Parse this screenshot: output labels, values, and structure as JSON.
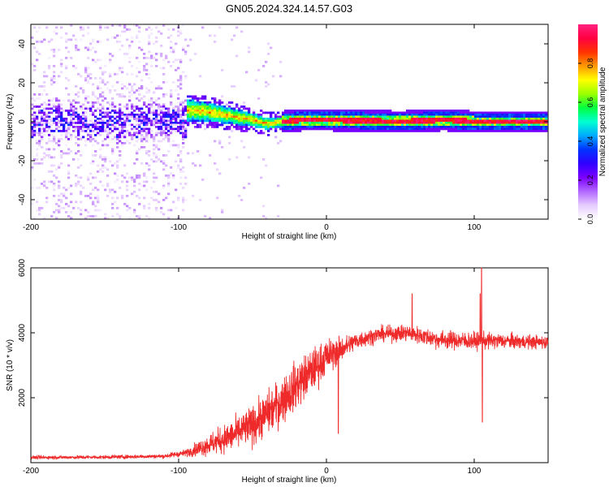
{
  "title": "GN05.2024.324.14.57.G03",
  "chart_data": [
    {
      "type": "heatmap",
      "title": "GN05.2024.324.14.57.G03",
      "xlabel": "Height of straight line (km)",
      "ylabel": "Frequency (Hz)",
      "xlim": [
        -200,
        150
      ],
      "ylim": [
        -50,
        50
      ],
      "x_ticks": [
        -200,
        -100,
        0,
        100
      ],
      "y_ticks": [
        -40,
        -20,
        0,
        20,
        40
      ],
      "colorbar": {
        "label": "Normalized spectral amplitude",
        "range": [
          0,
          1
        ],
        "ticks": [
          0.0,
          0.2,
          0.4,
          0.6,
          0.8
        ],
        "colors": [
          "#ffffff",
          "#e6ccff",
          "#b266ff",
          "#7a00ff",
          "#3000ff",
          "#0033ff",
          "#00aaff",
          "#00ffd0",
          "#00ff40",
          "#9aff00",
          "#ffff00",
          "#ff9900",
          "#ff3300",
          "#ff0040",
          "#ff2080"
        ]
      },
      "structure": {
        "noisy_region_x": [
          -200,
          -95
        ],
        "noise_band_center_hz": 0,
        "noise_band_halfwidth_hz": 8,
        "transition_region_x": [
          -95,
          -30
        ],
        "signal_track": [
          {
            "x": -95,
            "y": 6
          },
          {
            "x": -80,
            "y": 5
          },
          {
            "x": -65,
            "y": 3
          },
          {
            "x": -50,
            "y": 1
          },
          {
            "x": -40,
            "y": -1
          },
          {
            "x": -30,
            "y": 0
          },
          {
            "x": -15,
            "y": 1
          },
          {
            "x": 0,
            "y": 1
          },
          {
            "x": 50,
            "y": 0
          },
          {
            "x": 80,
            "y": 1
          },
          {
            "x": 100,
            "y": 0
          },
          {
            "x": 150,
            "y": 0
          }
        ]
      }
    },
    {
      "type": "line",
      "xlabel": "Height of straight line (km)",
      "ylabel": "SNR (10 * v/v)",
      "xlim": [
        -200,
        150
      ],
      "ylim": [
        0,
        6000
      ],
      "x_ticks": [
        -200,
        -100,
        0,
        100
      ],
      "y_ticks": [
        2000,
        4000,
        6000
      ],
      "color": "#ef2a2a",
      "series": [
        {
          "name": "SNR",
          "envelope": [
            {
              "x": -200,
              "mean": 160,
              "noise": 60
            },
            {
              "x": -150,
              "mean": 170,
              "noise": 60
            },
            {
              "x": -110,
              "mean": 200,
              "noise": 70
            },
            {
              "x": -95,
              "mean": 300,
              "noise": 120
            },
            {
              "x": -80,
              "mean": 550,
              "noise": 350
            },
            {
              "x": -65,
              "mean": 800,
              "noise": 500
            },
            {
              "x": -50,
              "mean": 1150,
              "noise": 650
            },
            {
              "x": -35,
              "mean": 1700,
              "noise": 750
            },
            {
              "x": -20,
              "mean": 2400,
              "noise": 800
            },
            {
              "x": -8,
              "mean": 2900,
              "noise": 700
            },
            {
              "x": 0,
              "mean": 3250,
              "noise": 600
            },
            {
              "x": 10,
              "mean": 3500,
              "noise": 400
            },
            {
              "x": 20,
              "mean": 3750,
              "noise": 300
            },
            {
              "x": 35,
              "mean": 3950,
              "noise": 250
            },
            {
              "x": 55,
              "mean": 4000,
              "noise": 280
            },
            {
              "x": 75,
              "mean": 3800,
              "noise": 300
            },
            {
              "x": 95,
              "mean": 3750,
              "noise": 300
            },
            {
              "x": 120,
              "mean": 3750,
              "noise": 250
            },
            {
              "x": 150,
              "mean": 3700,
              "noise": 220
            }
          ],
          "spikes": [
            {
              "x": 105,
              "y": 6000
            },
            {
              "x": 105.5,
              "y": 1250
            },
            {
              "x": 104,
              "y": 5200
            },
            {
              "x": 58,
              "y": 5200
            },
            {
              "x": 8,
              "y": 900
            }
          ]
        }
      ]
    }
  ]
}
